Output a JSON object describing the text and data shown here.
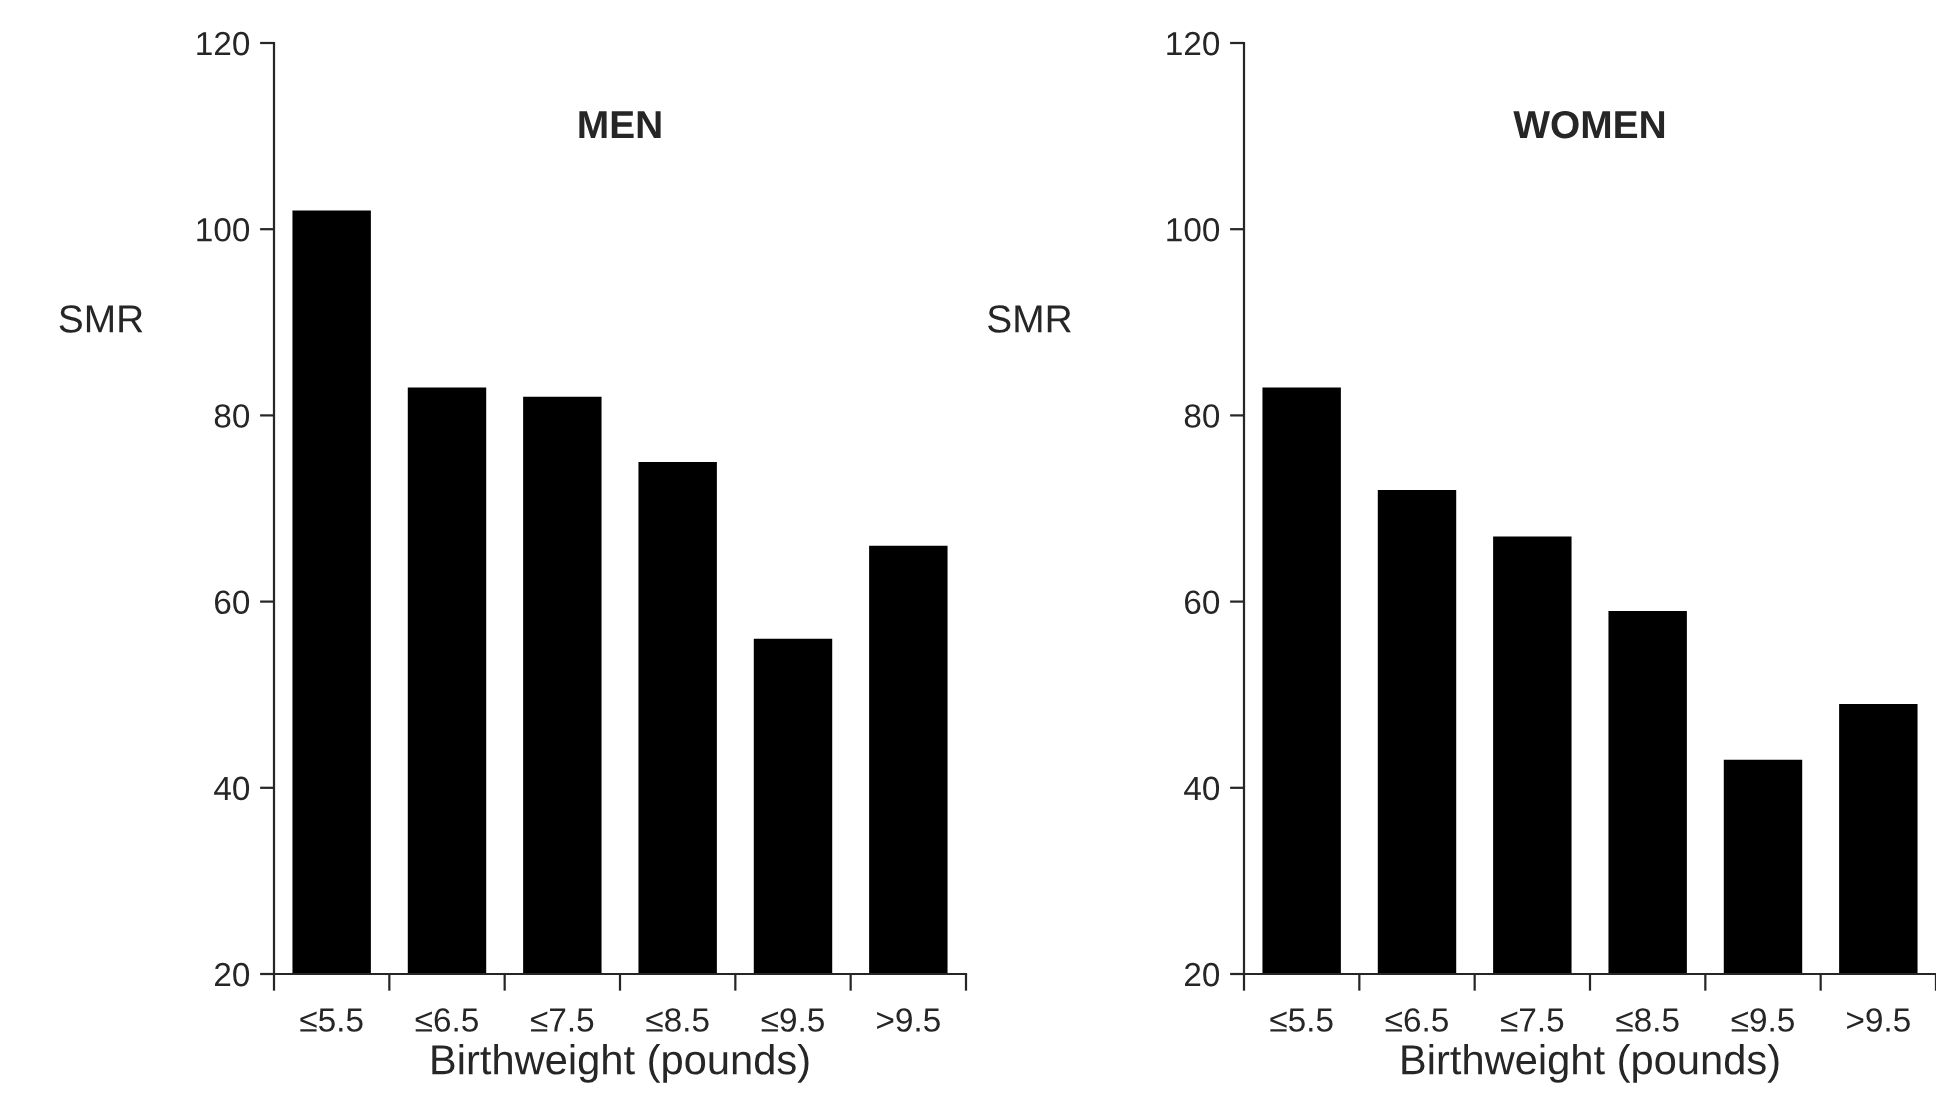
{
  "chart_data": [
    {
      "type": "bar",
      "title": "MEN",
      "xlabel": "Birthweight (pounds)",
      "ylabel": "SMR",
      "categories": [
        "≤5.5",
        "≤6.5",
        "≤7.5",
        "≤8.5",
        "≤9.5",
        ">9.5"
      ],
      "values": [
        102,
        83,
        82,
        75,
        56,
        66
      ],
      "color": "#000000",
      "ylim": [
        20,
        120
      ],
      "yticks": [
        20,
        40,
        60,
        80,
        100,
        120
      ]
    },
    {
      "type": "bar",
      "title": "WOMEN",
      "xlabel": "Birthweight (pounds)",
      "ylabel": "SMR",
      "categories": [
        "≤5.5",
        "≤6.5",
        "≤7.5",
        "≤8.5",
        "≤9.5",
        ">9.5"
      ],
      "values": [
        83,
        72,
        67,
        59,
        43,
        49
      ],
      "color": "#000000",
      "ylim": [
        20,
        120
      ],
      "yticks": [
        20,
        40,
        60,
        80,
        100,
        120
      ]
    }
  ]
}
